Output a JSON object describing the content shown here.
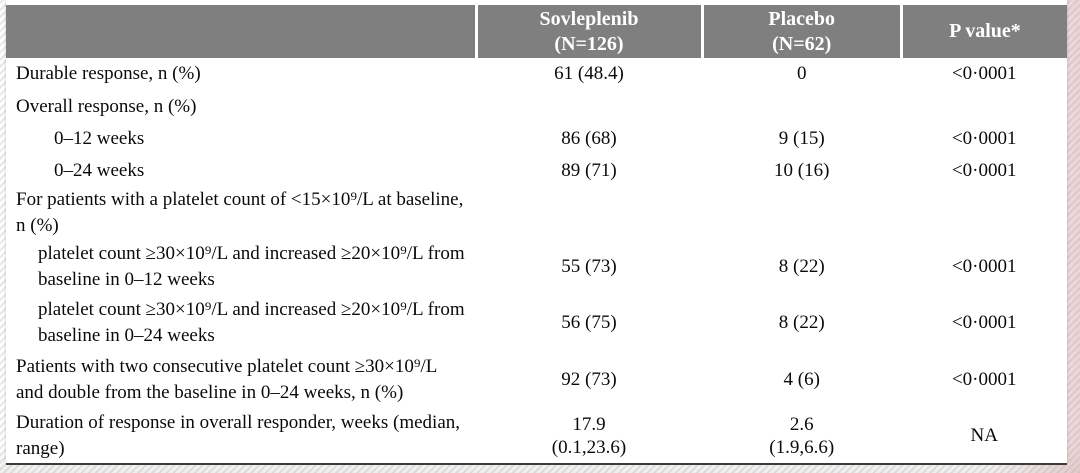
{
  "colors": {
    "header_bg": "#7f7f7f",
    "header_text": "#ffffff",
    "body_text": "#0a0a0a",
    "table_border": "#3c3c3c"
  },
  "table": {
    "headers": [
      {
        "line1": "",
        "line2": ""
      },
      {
        "line1": "Sovleplenib",
        "line2": "(N=126)"
      },
      {
        "line1": "Placebo",
        "line2": "(N=62)"
      },
      {
        "line1": "P value*",
        "line2": ""
      }
    ],
    "rows": [
      {
        "indent": 0,
        "label": "Durable response, n (%)",
        "sovleplenib": "61 (48.4)",
        "placebo": "0",
        "p_value": "<0·0001"
      },
      {
        "indent": 0,
        "label": "Overall response, n (%)",
        "sovleplenib": "",
        "placebo": "",
        "p_value": ""
      },
      {
        "indent": 1,
        "label": "0–12 weeks",
        "sovleplenib": "86 (68)",
        "placebo": "9 (15)",
        "p_value": "<0·0001"
      },
      {
        "indent": 1,
        "label": "0–24 weeks",
        "sovleplenib": "89 (71)",
        "placebo": "10 (16)",
        "p_value": "<0·0001"
      },
      {
        "indent": 0,
        "label": "For patients with a platelet count of <15×10⁹/L at baseline, n (%)",
        "sovleplenib": "",
        "placebo": "",
        "p_value": ""
      },
      {
        "indent": 2,
        "label": "platelet count ≥30×10⁹/L and increased ≥20×10⁹/L from baseline in 0–12 weeks",
        "sovleplenib": "55 (73)",
        "placebo": "8 (22)",
        "p_value": "<0·0001"
      },
      {
        "indent": 2,
        "label": "platelet count ≥30×10⁹/L and increased ≥20×10⁹/L from baseline in 0–24 weeks",
        "sovleplenib": "56 (75)",
        "placebo": "8 (22)",
        "p_value": "<0·0001"
      },
      {
        "indent": 0,
        "label": "Patients with two consecutive platelet count ≥30×10⁹/L and double from the baseline in 0–24 weeks, n (%)",
        "sovleplenib": "92 (73)",
        "placebo": "4 (6)",
        "p_value": "<0·0001"
      },
      {
        "indent": 0,
        "label": "Duration of response in overall responder, weeks (median, range)",
        "sovleplenib": "17.9",
        "sovleplenib_line2": "(0.1,23.6)",
        "placebo": "2.6",
        "placebo_line2": "(1.9,6.6)",
        "p_value": "NA"
      }
    ]
  }
}
